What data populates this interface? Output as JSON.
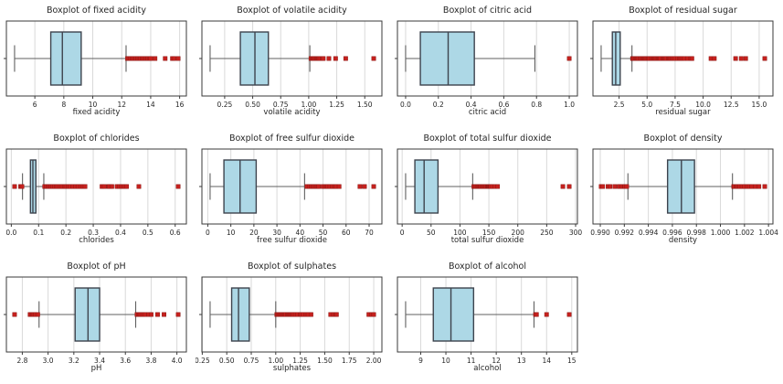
{
  "figure_title": "Wine feature boxplots grid",
  "style": {
    "background": "#ffffff",
    "box_fill": "#add8e6",
    "box_edge": "#3d434d",
    "median": "#3d434d",
    "whisker": "#606060",
    "spine": "#3a3a3a",
    "grid": "#d9d9d9",
    "flier_fill": "#c5211e",
    "flier_edge": "#8e1713",
    "text": "#262626"
  },
  "chart_data": [
    {
      "type": "boxplot",
      "orient": "horizontal",
      "grid": true,
      "title": "Boxplot of fixed acidity",
      "xlabel": "fixed acidity",
      "xlim": [
        4.035,
        16.465
      ],
      "ticks": [
        "6",
        "8",
        "10",
        "12",
        "14",
        "16"
      ],
      "stats": {
        "whisker_low": 4.6,
        "q1": 7.1,
        "median": 7.9,
        "q3": 9.2,
        "whisker_high": 12.3
      },
      "outliers": [
        12.4,
        12.5,
        12.6,
        12.7,
        12.8,
        12.9,
        13.0,
        13.1,
        13.2,
        13.3,
        13.4,
        13.5,
        13.6,
        13.7,
        13.8,
        13.9,
        14.0,
        14.3,
        15.0,
        15.5,
        15.6,
        15.9
      ]
    },
    {
      "type": "boxplot",
      "orient": "horizontal",
      "grid": true,
      "title": "Boxplot of volatile acidity",
      "xlabel": "volatile acidity",
      "xlim": [
        0.047,
        1.653
      ],
      "ticks": [
        "0.25",
        "0.50",
        "0.75",
        "1.00",
        "1.25",
        "1.50"
      ],
      "stats": {
        "whisker_low": 0.12,
        "q1": 0.39,
        "median": 0.52,
        "q3": 0.64,
        "whisker_high": 1.01
      },
      "outliers": [
        1.02,
        1.03,
        1.04,
        1.05,
        1.06,
        1.07,
        1.08,
        1.09,
        1.1,
        1.12,
        1.13,
        1.18,
        1.24,
        1.33,
        1.58
      ]
    },
    {
      "type": "boxplot",
      "orient": "horizontal",
      "grid": true,
      "title": "Boxplot of citric acid",
      "xlabel": "citric acid",
      "xlim": [
        -0.05,
        1.05
      ],
      "ticks": [
        "0.0",
        "0.2",
        "0.4",
        "0.6",
        "0.8",
        "1.0"
      ],
      "stats": {
        "whisker_low": 0.0,
        "q1": 0.09,
        "median": 0.26,
        "q3": 0.42,
        "whisker_high": 0.79
      },
      "outliers": [
        1.0
      ]
    },
    {
      "type": "boxplot",
      "orient": "horizontal",
      "grid": true,
      "title": "Boxplot of residual sugar",
      "xlabel": "residual sugar",
      "xlim": [
        0.17,
        16.23
      ],
      "ticks": [
        "2.5",
        "5.0",
        "7.5",
        "10.0",
        "12.5",
        "15.0"
      ],
      "stats": {
        "whisker_low": 0.9,
        "q1": 1.9,
        "median": 2.2,
        "q3": 2.6,
        "whisker_high": 3.65
      },
      "outliers": [
        3.7,
        3.75,
        3.85,
        3.95,
        4.05,
        4.15,
        4.25,
        4.4,
        4.5,
        4.6,
        4.7,
        4.8,
        4.9,
        5.0,
        5.1,
        5.2,
        5.4,
        5.5,
        5.6,
        5.7,
        5.8,
        5.9,
        6.0,
        6.1,
        6.2,
        6.4,
        6.5,
        6.6,
        6.7,
        6.9,
        7.0,
        7.1,
        7.2,
        7.3,
        7.5,
        7.7,
        7.9,
        8.0,
        8.1,
        8.3,
        8.6,
        8.9,
        9.0,
        10.7,
        11.0,
        12.9,
        13.4,
        13.8,
        15.5
      ]
    },
    {
      "type": "boxplot",
      "orient": "horizontal",
      "grid": true,
      "title": "Boxplot of chlorides",
      "xlabel": "chlorides",
      "xlim": [
        -0.018,
        0.641
      ],
      "ticks": [
        "0.0",
        "0.1",
        "0.2",
        "0.3",
        "0.4",
        "0.5",
        "0.6"
      ],
      "stats": {
        "whisker_low": 0.041,
        "q1": 0.07,
        "median": 0.079,
        "q3": 0.09,
        "whisker_high": 0.119
      },
      "outliers": [
        0.012,
        0.034,
        0.038,
        0.039,
        0.122,
        0.128,
        0.134,
        0.14,
        0.146,
        0.152,
        0.158,
        0.164,
        0.17,
        0.178,
        0.186,
        0.194,
        0.2,
        0.208,
        0.216,
        0.226,
        0.235,
        0.244,
        0.254,
        0.263,
        0.27,
        0.332,
        0.34,
        0.356,
        0.36,
        0.368,
        0.387,
        0.395,
        0.403,
        0.41,
        0.415,
        0.422,
        0.467,
        0.611
      ]
    },
    {
      "type": "boxplot",
      "orient": "horizontal",
      "grid": true,
      "title": "Boxplot of free sulfur dioxide",
      "xlabel": "free sulfur dioxide",
      "xlim": [
        -2.55,
        75.55
      ],
      "ticks": [
        "0",
        "10",
        "20",
        "30",
        "40",
        "50",
        "60",
        "70"
      ],
      "stats": {
        "whisker_low": 1,
        "q1": 7,
        "median": 14,
        "q3": 21,
        "whisker_high": 42
      },
      "outliers": [
        43,
        44,
        45,
        45.5,
        46,
        47,
        47.5,
        48,
        50,
        51,
        51.5,
        52,
        53,
        54,
        55,
        55.5,
        57,
        66,
        68,
        72
      ]
    },
    {
      "type": "boxplot",
      "orient": "horizontal",
      "grid": true,
      "title": "Boxplot of total sulfur dioxide",
      "xlabel": "total sulfur dioxide",
      "xlim": [
        -8.15,
        303.15
      ],
      "ticks": [
        "0",
        "50",
        "100",
        "150",
        "200",
        "250",
        "300"
      ],
      "stats": {
        "whisker_low": 6,
        "q1": 22,
        "median": 38,
        "q3": 62,
        "whisker_high": 122
      },
      "outliers": [
        124,
        126,
        128,
        130,
        132,
        134,
        135,
        136,
        138,
        140,
        141,
        143,
        145,
        147,
        148,
        149,
        150,
        151,
        152,
        153,
        155,
        160,
        165,
        278,
        289
      ]
    },
    {
      "type": "boxplot",
      "orient": "horizontal",
      "grid": true,
      "title": "Boxplot of density",
      "xlabel": "density",
      "xlim": [
        0.98939,
        1.00437
      ],
      "ticks": [
        "0.990",
        "0.992",
        "0.994",
        "0.996",
        "0.998",
        "1.000",
        "1.002",
        "1.004"
      ],
      "stats": {
        "whisker_low": 0.9923,
        "q1": 0.9956,
        "median": 0.99675,
        "q3": 0.99784,
        "whisker_high": 1.001
      },
      "outliers": [
        0.99007,
        0.9902,
        0.99064,
        0.9908,
        0.9912,
        0.99157,
        0.9916,
        0.9918,
        0.992,
        0.99203,
        0.9922,
        1.0011,
        1.00115,
        1.0013,
        1.0014,
        1.0015,
        1.0016,
        1.0018,
        1.002,
        1.0022,
        1.0024,
        1.0026,
        1.0029,
        1.0032,
        1.00369
      ]
    },
    {
      "type": "boxplot",
      "orient": "horizontal",
      "grid": true,
      "title": "Boxplot of pH",
      "xlabel": "pH",
      "xlim": [
        2.6765,
        4.0735
      ],
      "ticks": [
        "2.8",
        "3.0",
        "3.2",
        "3.4",
        "3.6",
        "3.8",
        "4.0"
      ],
      "stats": {
        "whisker_low": 2.93,
        "q1": 3.21,
        "median": 3.31,
        "q3": 3.4,
        "whisker_high": 3.68
      },
      "outliers": [
        2.74,
        2.86,
        2.87,
        2.88,
        2.89,
        2.9,
        2.92,
        3.69,
        3.7,
        3.71,
        3.72,
        3.735,
        3.75,
        3.78,
        3.8,
        3.85,
        3.9,
        4.01
      ]
    },
    {
      "type": "boxplot",
      "orient": "horizontal",
      "grid": true,
      "title": "Boxplot of sulphates",
      "xlabel": "sulphates",
      "xlim": [
        0.2465,
        2.0835
      ],
      "ticks": [
        "0.25",
        "0.50",
        "0.75",
        "1.00",
        "1.25",
        "1.50",
        "1.75",
        "2.00"
      ],
      "stats": {
        "whisker_low": 0.33,
        "q1": 0.55,
        "median": 0.62,
        "q3": 0.73,
        "whisker_high": 1.0
      },
      "outliers": [
        1.01,
        1.02,
        1.03,
        1.04,
        1.05,
        1.06,
        1.07,
        1.08,
        1.09,
        1.1,
        1.12,
        1.13,
        1.14,
        1.15,
        1.16,
        1.17,
        1.18,
        1.2,
        1.22,
        1.25,
        1.26,
        1.28,
        1.31,
        1.33,
        1.36,
        1.56,
        1.59,
        1.61,
        1.62,
        1.95,
        1.98,
        2.0
      ]
    },
    {
      "type": "boxplot",
      "orient": "horizontal",
      "grid": true,
      "title": "Boxplot of alcohol",
      "xlabel": "alcohol",
      "xlim": [
        8.075,
        15.225
      ],
      "ticks": [
        "9",
        "10",
        "11",
        "12",
        "13",
        "14",
        "15"
      ],
      "stats": {
        "whisker_low": 8.4,
        "q1": 9.5,
        "median": 10.2,
        "q3": 11.1,
        "whisker_high": 13.5
      },
      "outliers": [
        13.56,
        13.6,
        14.0,
        14.9
      ]
    }
  ]
}
